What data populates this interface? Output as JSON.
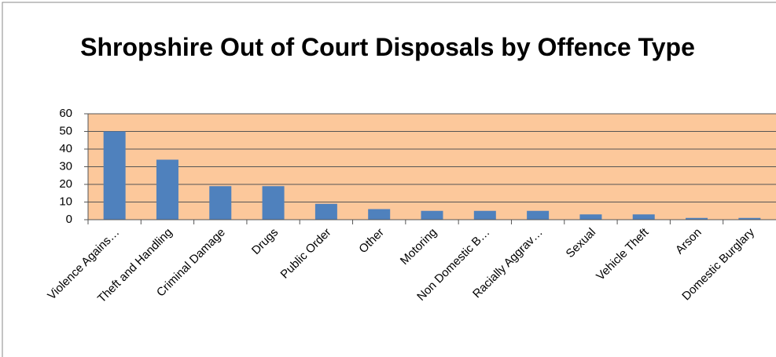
{
  "chart_data": {
    "type": "bar",
    "title": "Shropshire Out of Court Disposals by Offence Type",
    "categories": [
      "Violence Agains…",
      "Theft and Handling",
      "Criminal Damage",
      "Drugs",
      "Public Order",
      "Other",
      "Motoring",
      "Non Domestic B…",
      "Racially Aggrav…",
      "Sexual",
      "Vehicle Theft",
      "Arson",
      "Domestic Burglary"
    ],
    "values": [
      50,
      34,
      19,
      19,
      9,
      6,
      5,
      5,
      5,
      3,
      3,
      1,
      1
    ],
    "color": "#4f81bd",
    "plot_background": "#fcc89b",
    "ylim": [
      0,
      60
    ],
    "yticks": [
      0,
      10,
      20,
      30,
      40,
      50,
      60
    ],
    "grid": true
  }
}
